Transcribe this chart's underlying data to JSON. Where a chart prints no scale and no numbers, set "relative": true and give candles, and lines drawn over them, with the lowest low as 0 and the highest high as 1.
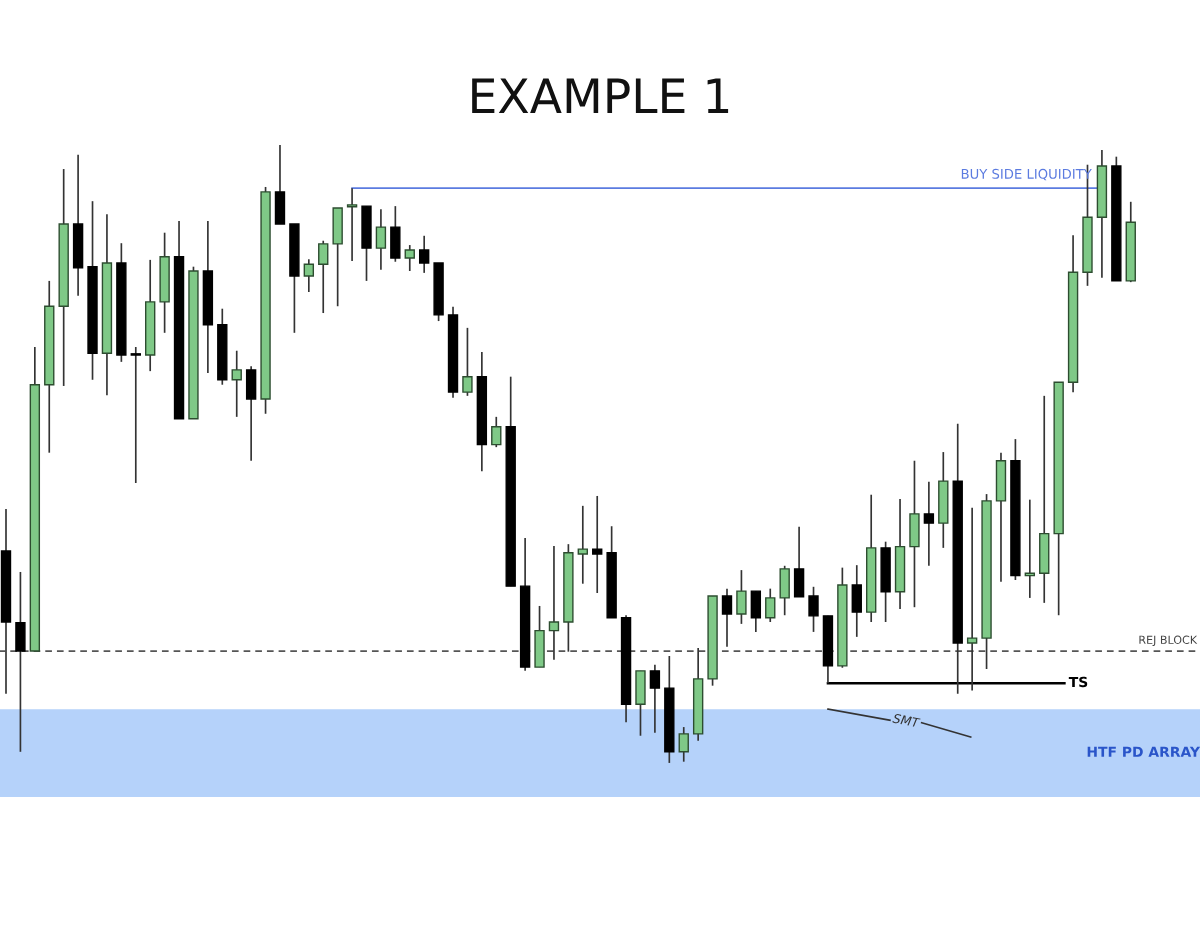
{
  "chart_data": {
    "type": "candlestick",
    "title": "EXAMPLE 1",
    "relative": true,
    "categories": [
      null,
      null,
      null,
      null,
      null,
      null,
      null,
      null,
      null,
      null,
      null,
      null,
      null,
      null,
      null,
      null,
      null,
      null,
      null,
      null,
      null,
      null,
      null,
      null,
      null,
      null,
      null,
      null,
      null,
      null,
      null,
      null,
      null,
      null,
      null,
      null,
      null,
      null,
      null,
      null,
      null,
      null,
      null,
      null,
      null,
      null,
      null,
      null,
      null,
      null,
      null,
      null,
      null,
      null,
      null,
      null,
      null,
      null,
      null,
      null,
      null,
      null,
      null,
      null,
      null,
      null,
      null,
      null,
      null,
      null,
      null,
      null,
      null,
      null,
      null,
      null,
      null,
      null,
      null
    ],
    "ohlc": [
      [
        0.343,
        0.411,
        0.112,
        0.228
      ],
      [
        0.227,
        0.309,
        0.018,
        0.181
      ],
      [
        0.181,
        0.673,
        0.181,
        0.612
      ],
      [
        0.612,
        0.78,
        0.502,
        0.739
      ],
      [
        0.739,
        0.961,
        0.61,
        0.872
      ],
      [
        0.872,
        0.984,
        0.756,
        0.801
      ],
      [
        0.803,
        0.909,
        0.62,
        0.663
      ],
      [
        0.663,
        0.888,
        0.595,
        0.809
      ],
      [
        0.809,
        0.841,
        0.649,
        0.66
      ],
      [
        0.66,
        0.673,
        0.453,
        0.66
      ],
      [
        0.66,
        0.814,
        0.634,
        0.746
      ],
      [
        0.746,
        0.858,
        0.696,
        0.819
      ],
      [
        0.819,
        0.877,
        0.557,
        0.557
      ],
      [
        0.557,
        0.803,
        0.557,
        0.796
      ],
      [
        0.796,
        0.877,
        0.631,
        0.709
      ],
      [
        0.709,
        0.735,
        0.612,
        0.62
      ],
      [
        0.62,
        0.667,
        0.56,
        0.636
      ],
      [
        0.636,
        0.642,
        0.489,
        0.589
      ],
      [
        0.589,
        0.932,
        0.565,
        0.924
      ],
      [
        0.924,
        1.0,
        0.872,
        0.872
      ],
      [
        0.872,
        0.872,
        0.696,
        0.788
      ],
      [
        0.788,
        0.815,
        0.762,
        0.807
      ],
      [
        0.807,
        0.845,
        0.728,
        0.84
      ],
      [
        0.84,
        0.898,
        0.739,
        0.898
      ],
      [
        0.9,
        0.93,
        0.812,
        0.903
      ],
      [
        0.901,
        0.901,
        0.78,
        0.833
      ],
      [
        0.833,
        0.896,
        0.798,
        0.867
      ],
      [
        0.867,
        0.901,
        0.811,
        0.817
      ],
      [
        0.817,
        0.838,
        0.796,
        0.83
      ],
      [
        0.83,
        0.853,
        0.793,
        0.809
      ],
      [
        0.809,
        0.809,
        0.715,
        0.725
      ],
      [
        0.725,
        0.738,
        0.591,
        0.6
      ],
      [
        0.6,
        0.704,
        0.594,
        0.625
      ],
      [
        0.625,
        0.665,
        0.472,
        0.515
      ],
      [
        0.515,
        0.56,
        0.511,
        0.544
      ],
      [
        0.544,
        0.625,
        0.286,
        0.286
      ],
      [
        0.286,
        0.364,
        0.149,
        0.155
      ],
      [
        0.155,
        0.254,
        0.155,
        0.214
      ],
      [
        0.214,
        0.351,
        0.167,
        0.228
      ],
      [
        0.228,
        0.354,
        0.18,
        0.34
      ],
      [
        0.338,
        0.416,
        0.29,
        0.346
      ],
      [
        0.346,
        0.432,
        0.275,
        0.338
      ],
      [
        0.34,
        0.383,
        0.235,
        0.235
      ],
      [
        0.235,
        0.239,
        0.066,
        0.095
      ],
      [
        0.095,
        0.149,
        0.044,
        0.149
      ],
      [
        0.149,
        0.159,
        0.049,
        0.121
      ],
      [
        0.121,
        0.173,
        0.0,
        0.018
      ],
      [
        0.018,
        0.058,
        0.002,
        0.047
      ],
      [
        0.047,
        0.186,
        0.036,
        0.136
      ],
      [
        0.136,
        0.27,
        0.125,
        0.27
      ],
      [
        0.27,
        0.282,
        0.188,
        0.241
      ],
      [
        0.241,
        0.312,
        0.225,
        0.278
      ],
      [
        0.278,
        0.278,
        0.212,
        0.235
      ],
      [
        0.235,
        0.282,
        0.228,
        0.267
      ],
      [
        0.267,
        0.319,
        0.239,
        0.314
      ],
      [
        0.314,
        0.382,
        0.269,
        0.269
      ],
      [
        0.27,
        0.285,
        0.212,
        0.238
      ],
      [
        0.238,
        0.238,
        0.129,
        0.157
      ],
      [
        0.157,
        0.316,
        0.154,
        0.288
      ],
      [
        0.288,
        0.32,
        0.204,
        0.244
      ],
      [
        0.244,
        0.434,
        0.228,
        0.348
      ],
      [
        0.348,
        0.358,
        0.228,
        0.277
      ],
      [
        0.277,
        0.427,
        0.249,
        0.35
      ],
      [
        0.35,
        0.489,
        0.252,
        0.403
      ],
      [
        0.403,
        0.455,
        0.319,
        0.388
      ],
      [
        0.388,
        0.503,
        0.348,
        0.456
      ],
      [
        0.456,
        0.549,
        0.112,
        0.194
      ],
      [
        0.194,
        0.413,
        0.117,
        0.202
      ],
      [
        0.202,
        0.435,
        0.152,
        0.424
      ],
      [
        0.424,
        0.502,
        0.293,
        0.489
      ],
      [
        0.489,
        0.524,
        0.296,
        0.303
      ],
      [
        0.303,
        0.426,
        0.267,
        0.307
      ],
      [
        0.307,
        0.594,
        0.259,
        0.371
      ],
      [
        0.371,
        0.616,
        0.239,
        0.616
      ],
      [
        0.616,
        0.854,
        0.6,
        0.794
      ],
      [
        0.794,
        0.968,
        0.772,
        0.883
      ],
      [
        0.883,
        0.992,
        0.785,
        0.966
      ],
      [
        0.966,
        0.981,
        0.78,
        0.78
      ],
      [
        0.78,
        0.908,
        0.778,
        0.875
      ]
    ],
    "colors": [
      "#000000",
      "#000000",
      "#7fc987",
      "#7fc987",
      "#7fc987",
      "#000000",
      "#000000",
      "#7fc987",
      "#000000",
      "#000000",
      "#7fc987",
      "#7fc987",
      "#000000",
      "#7fc987",
      "#000000",
      "#000000",
      "#7fc987",
      "#000000",
      "#7fc987",
      "#000000",
      "#000000",
      "#7fc987",
      "#7fc987",
      "#7fc987",
      "#7fc987",
      "#000000",
      "#7fc987",
      "#000000",
      "#7fc987",
      "#000000",
      "#000000",
      "#000000",
      "#7fc987",
      "#000000",
      "#7fc987",
      "#000000",
      "#000000",
      "#7fc987",
      "#7fc987",
      "#7fc987",
      "#7fc987",
      "#000000",
      "#000000",
      "#000000",
      "#7fc987",
      "#000000",
      "#000000",
      "#7fc987",
      "#7fc987",
      "#7fc987",
      "#000000",
      "#7fc987",
      "#000000",
      "#7fc987",
      "#7fc987",
      "#000000",
      "#000000",
      "#000000",
      "#7fc987",
      "#000000",
      "#7fc987",
      "#000000",
      "#7fc987",
      "#7fc987",
      "#000000",
      "#7fc987",
      "#000000",
      "#7fc987",
      "#7fc987",
      "#7fc987",
      "#000000",
      "#7fc987",
      "#7fc987",
      "#7fc987",
      "#7fc987",
      "#7fc987",
      "#7fc987",
      "#000000",
      "#7fc987"
    ],
    "ref_lines": [
      {
        "axis": "y",
        "value": 0.93,
        "label": "BUY SIDE LIQUIDITY",
        "color": "#5b7be0",
        "line_style": "solid"
      },
      {
        "axis": "y",
        "value": 0.181,
        "label": "REJ BLOCK",
        "color": "#555555",
        "line_style": "dashed"
      },
      {
        "axis": "y",
        "value": 0.129,
        "label": "TS",
        "color": "#000000",
        "line_style": "solid"
      }
    ],
    "bands": [
      {
        "axis": "y",
        "from": -0.055,
        "to": 0.087,
        "label": "HTF PD ARRAY",
        "color": "#b5d2fa"
      }
    ],
    "annotations": [
      "SMT"
    ]
  }
}
